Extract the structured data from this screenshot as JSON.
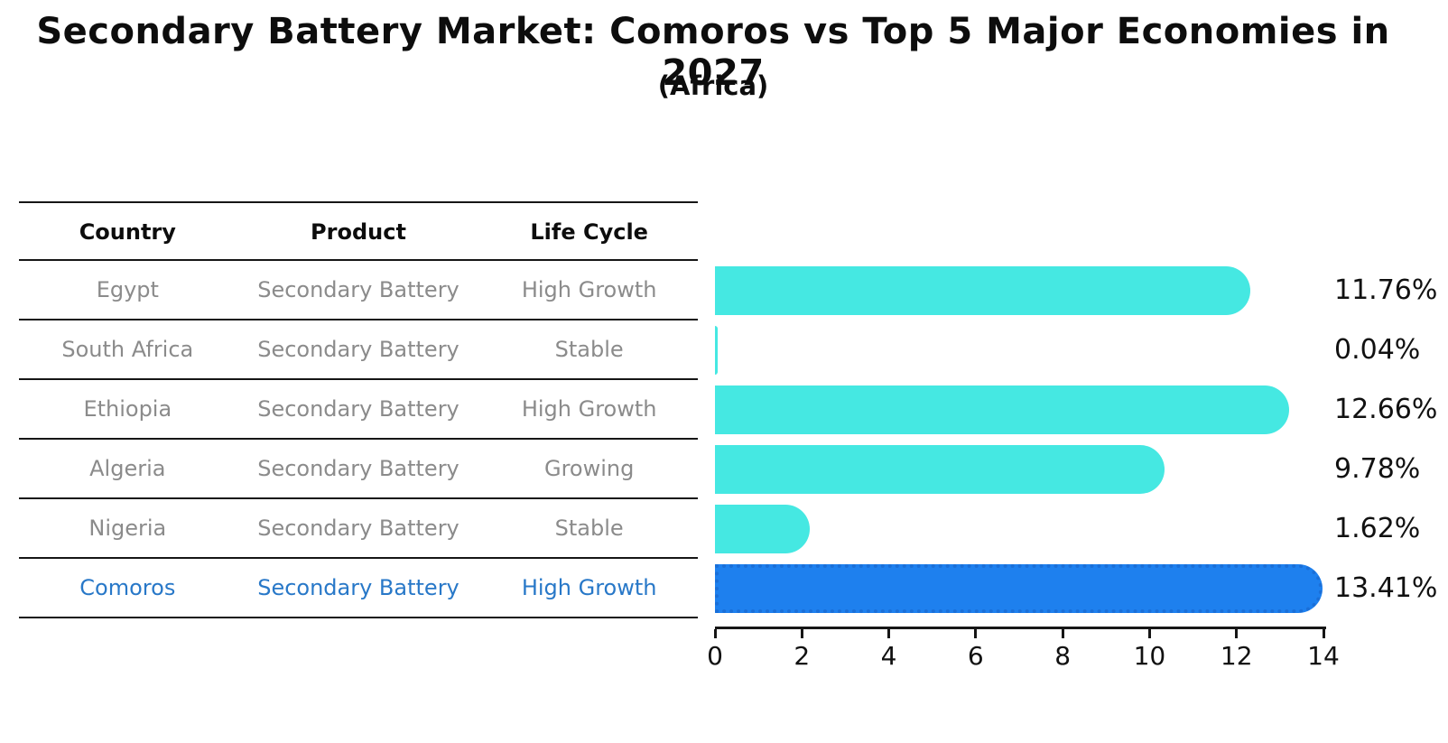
{
  "title": "Secondary Battery Market: Comoros vs Top 5 Major Economies in 2027",
  "subtitle": "(Africa)",
  "table": {
    "headers": [
      "Country",
      "Product",
      "Life Cycle"
    ],
    "rows": [
      {
        "country": "Egypt",
        "product": "Secondary Battery",
        "life_cycle": "High Growth",
        "highlight": false
      },
      {
        "country": "South Africa",
        "product": "Secondary Battery",
        "life_cycle": "Stable",
        "highlight": false
      },
      {
        "country": "Ethiopia",
        "product": "Secondary Battery",
        "life_cycle": "High Growth",
        "highlight": false
      },
      {
        "country": "Algeria",
        "product": "Secondary Battery",
        "life_cycle": "Growing",
        "highlight": false
      },
      {
        "country": "Nigeria",
        "product": "Secondary Battery",
        "life_cycle": "Stable",
        "highlight": false
      },
      {
        "country": "Comoros",
        "product": "Secondary Battery",
        "life_cycle": "High Growth",
        "highlight": true
      }
    ]
  },
  "chart_data": {
    "type": "bar",
    "orientation": "horizontal",
    "title": "Secondary Battery Market: Comoros vs Top 5 Major Economies in 2027",
    "subtitle": "(Africa)",
    "categories": [
      "Egypt",
      "South Africa",
      "Ethiopia",
      "Algeria",
      "Nigeria",
      "Comoros"
    ],
    "values": [
      11.76,
      0.04,
      12.66,
      9.78,
      1.62,
      13.41
    ],
    "value_labels": [
      "11.76%",
      "0.04%",
      "12.66%",
      "9.78%",
      "1.62%",
      "13.41%"
    ],
    "xlim": [
      0,
      14
    ],
    "xticks": [
      0,
      2,
      4,
      6,
      8,
      10,
      12,
      14
    ],
    "grid": false,
    "legend": false,
    "highlight_index": 5,
    "colors": {
      "default_bar": "#45e8e2",
      "highlight_bar": "#1e80ee",
      "highlight_bar_border": "#1a6fd8",
      "highlight_text": "#2878c8",
      "row_text": "#8b8b8b",
      "label_text": "#111111"
    }
  }
}
